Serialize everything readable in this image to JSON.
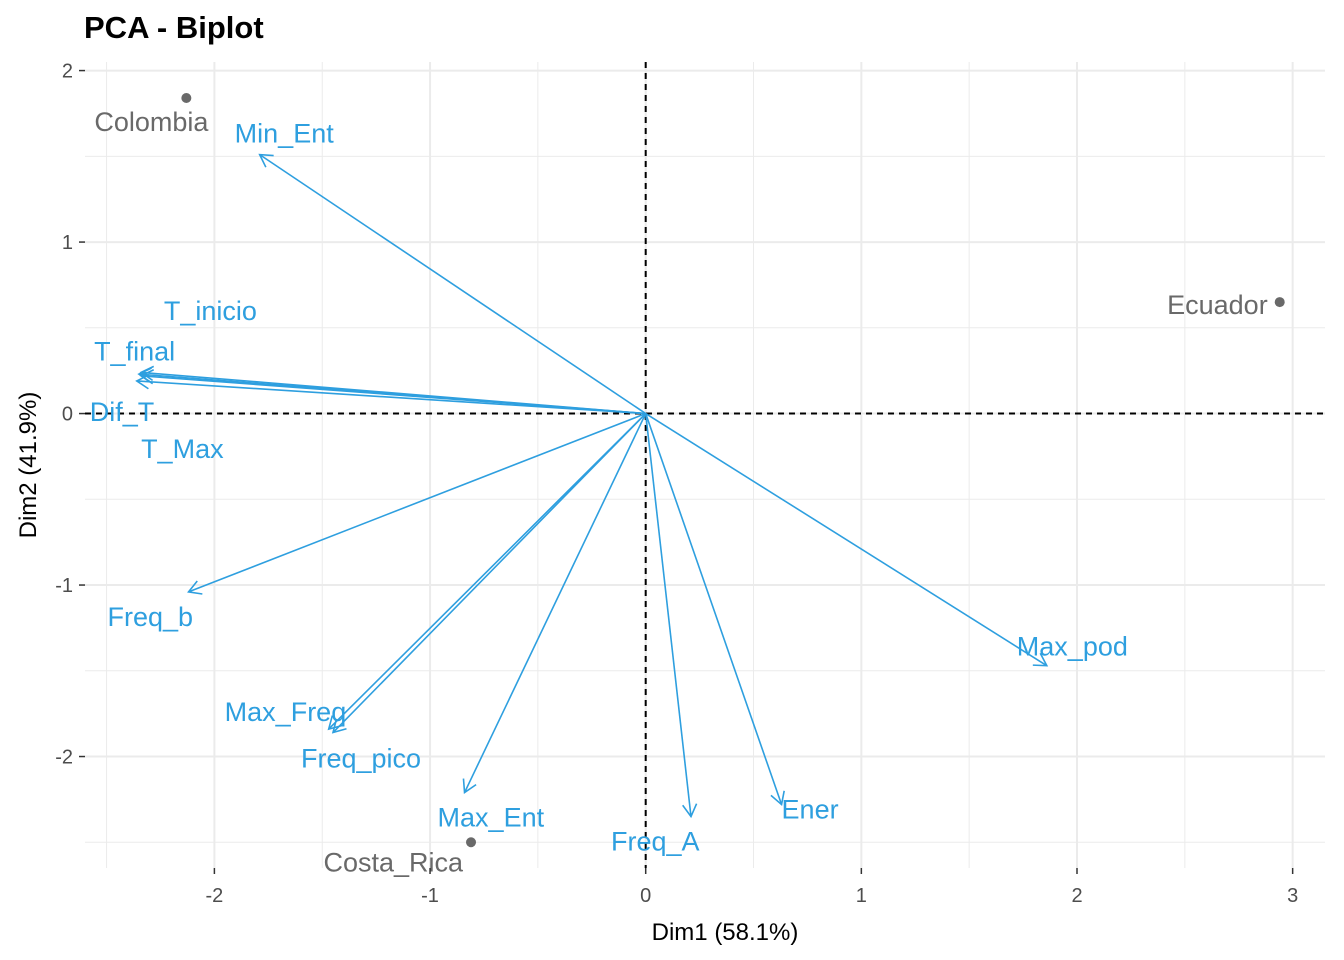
{
  "chart_data": {
    "type": "scatter",
    "title": "PCA - Biplot",
    "xlabel": "Dim1 (58.1%)",
    "ylabel": "Dim2 (41.9%)",
    "xlim": [
      -2.6,
      3.15
    ],
    "ylim": [
      -2.65,
      2.05
    ],
    "x_ticks": [
      {
        "value": -2,
        "label": "-2"
      },
      {
        "value": -1,
        "label": "-1"
      },
      {
        "value": 0,
        "label": "0"
      },
      {
        "value": 1,
        "label": "1"
      },
      {
        "value": 2,
        "label": "2"
      },
      {
        "value": 3,
        "label": "3"
      }
    ],
    "y_ticks": [
      {
        "value": -2,
        "label": "-2"
      },
      {
        "value": -1,
        "label": "-1"
      },
      {
        "value": 0,
        "label": "0"
      },
      {
        "value": 1,
        "label": "1"
      },
      {
        "value": 2,
        "label": "2"
      }
    ],
    "grid": true,
    "reference_lines": {
      "x": 0,
      "y": 0,
      "style": "dashed"
    },
    "colors": {
      "variables": "#2e9fdf",
      "individuals": "#696969",
      "grid": "#ebebeb"
    },
    "individuals": [
      {
        "name": "Colombia",
        "x": -2.13,
        "y": 1.84
      },
      {
        "name": "Ecuador",
        "x": 2.94,
        "y": 0.65
      },
      {
        "name": "Costa_Rica",
        "x": -0.81,
        "y": -2.5
      }
    ],
    "variables": [
      {
        "name": "Min_Ent",
        "x": -1.79,
        "y": 1.51
      },
      {
        "name": "T_inicio",
        "x": -2.35,
        "y": 0.23
      },
      {
        "name": "T_final",
        "x": -2.34,
        "y": 0.24
      },
      {
        "name": "Dif_T",
        "x": -2.36,
        "y": 0.19
      },
      {
        "name": "T_Max",
        "x": -2.34,
        "y": 0.22
      },
      {
        "name": "Freq_b",
        "x": -2.12,
        "y": -1.04
      },
      {
        "name": "Max_Freq",
        "x": -1.47,
        "y": -1.84
      },
      {
        "name": "Freq_pico",
        "x": -1.45,
        "y": -1.86
      },
      {
        "name": "Max_Ent",
        "x": -0.84,
        "y": -2.21
      },
      {
        "name": "Freq_A",
        "x": 0.21,
        "y": -2.35
      },
      {
        "name": "Ener",
        "x": 0.63,
        "y": -2.28
      },
      {
        "name": "Max_pod",
        "x": 1.86,
        "y": -1.47
      }
    ]
  }
}
